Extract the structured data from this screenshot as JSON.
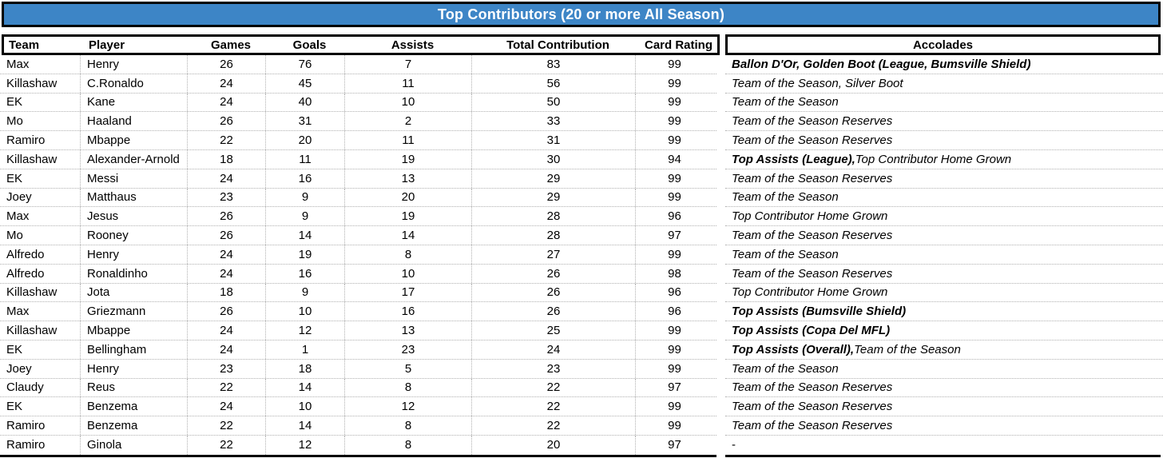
{
  "title": "Top Contributors (20 or more All Season)",
  "colors": {
    "title_bg": "#3d85c6",
    "title_text": "#ffffff",
    "border": "#000000",
    "grid_dotted": "#b0b0b0"
  },
  "table": {
    "columns": [
      "Team",
      "Player",
      "Games",
      "Goals",
      "Assists",
      "Total Contribution",
      "Card Rating"
    ],
    "accolades_header": "Accolades",
    "rows": [
      {
        "team": "Max",
        "player": "Henry",
        "games": "26",
        "goals": "76",
        "assists": "7",
        "total": "83",
        "rating": "99",
        "accolades": [
          {
            "text": "Ballon D'Or, Golden Boot (League, Bumsville Shield)",
            "style": "bold-italic"
          }
        ]
      },
      {
        "team": "Killashaw",
        "player": "C.Ronaldo",
        "games": "24",
        "goals": "45",
        "assists": "11",
        "total": "56",
        "rating": "99",
        "accolades": [
          {
            "text": "Team of the Season, Silver Boot",
            "style": "italic"
          }
        ]
      },
      {
        "team": "EK",
        "player": "Kane",
        "games": "24",
        "goals": "40",
        "assists": "10",
        "total": "50",
        "rating": "99",
        "accolades": [
          {
            "text": "Team of the Season",
            "style": "italic"
          }
        ]
      },
      {
        "team": "Mo",
        "player": "Haaland",
        "games": "26",
        "goals": "31",
        "assists": "2",
        "total": "33",
        "rating": "99",
        "accolades": [
          {
            "text": "Team of the Season Reserves",
            "style": "italic"
          }
        ]
      },
      {
        "team": "Ramiro",
        "player": "Mbappe",
        "games": "22",
        "goals": "20",
        "assists": "11",
        "total": "31",
        "rating": "99",
        "accolades": [
          {
            "text": "Team of the Season Reserves",
            "style": "italic"
          }
        ]
      },
      {
        "team": "Killashaw",
        "player": "Alexander-Arnold",
        "games": "18",
        "goals": "11",
        "assists": "19",
        "total": "30",
        "rating": "94",
        "accolades": [
          {
            "text": "Top Assists (League),",
            "style": "bold-italic"
          },
          {
            "text": " Top Contributor Home Grown",
            "style": "italic"
          }
        ]
      },
      {
        "team": "EK",
        "player": "Messi",
        "games": "24",
        "goals": "16",
        "assists": "13",
        "total": "29",
        "rating": "99",
        "accolades": [
          {
            "text": "Team of the Season Reserves",
            "style": "italic"
          }
        ]
      },
      {
        "team": "Joey",
        "player": "Matthaus",
        "games": "23",
        "goals": "9",
        "assists": "20",
        "total": "29",
        "rating": "99",
        "accolades": [
          {
            "text": "Team of the Season",
            "style": "italic"
          }
        ]
      },
      {
        "team": "Max",
        "player": "Jesus",
        "games": "26",
        "goals": "9",
        "assists": "19",
        "total": "28",
        "rating": "96",
        "accolades": [
          {
            "text": "Top Contributor Home Grown",
            "style": "italic"
          }
        ]
      },
      {
        "team": "Mo",
        "player": "Rooney",
        "games": "26",
        "goals": "14",
        "assists": "14",
        "total": "28",
        "rating": "97",
        "accolades": [
          {
            "text": "Team of the Season Reserves",
            "style": "italic"
          }
        ]
      },
      {
        "team": "Alfredo",
        "player": "Henry",
        "games": "24",
        "goals": "19",
        "assists": "8",
        "total": "27",
        "rating": "99",
        "accolades": [
          {
            "text": "Team of the Season",
            "style": "italic"
          }
        ]
      },
      {
        "team": "Alfredo",
        "player": "Ronaldinho",
        "games": "24",
        "goals": "16",
        "assists": "10",
        "total": "26",
        "rating": "98",
        "accolades": [
          {
            "text": "Team of the Season Reserves",
            "style": "italic"
          }
        ]
      },
      {
        "team": "Killashaw",
        "player": "Jota",
        "games": "18",
        "goals": "9",
        "assists": "17",
        "total": "26",
        "rating": "96",
        "accolades": [
          {
            "text": "Top Contributor Home Grown",
            "style": "italic"
          }
        ]
      },
      {
        "team": "Max",
        "player": "Griezmann",
        "games": "26",
        "goals": "10",
        "assists": "16",
        "total": "26",
        "rating": "96",
        "accolades": [
          {
            "text": "Top Assists (Bumsville Shield)",
            "style": "bold-italic"
          }
        ]
      },
      {
        "team": "Killashaw",
        "player": "Mbappe",
        "games": "24",
        "goals": "12",
        "assists": "13",
        "total": "25",
        "rating": "99",
        "accolades": [
          {
            "text": "Top Assists (Copa Del MFL)",
            "style": "bold-italic"
          }
        ]
      },
      {
        "team": "EK",
        "player": "Bellingham",
        "games": "24",
        "goals": "1",
        "assists": "23",
        "total": "24",
        "rating": "99",
        "accolades": [
          {
            "text": "Top Assists (Overall),",
            "style": "bold-italic"
          },
          {
            "text": " Team of the Season",
            "style": "italic"
          }
        ]
      },
      {
        "team": "Joey",
        "player": "Henry",
        "games": "23",
        "goals": "18",
        "assists": "5",
        "total": "23",
        "rating": "99",
        "accolades": [
          {
            "text": "Team of the Season",
            "style": "italic"
          }
        ]
      },
      {
        "team": "Claudy",
        "player": "Reus",
        "games": "22",
        "goals": "14",
        "assists": "8",
        "total": "22",
        "rating": "97",
        "accolades": [
          {
            "text": "Team of the Season Reserves",
            "style": "italic"
          }
        ]
      },
      {
        "team": "EK",
        "player": "Benzema",
        "games": "24",
        "goals": "10",
        "assists": "12",
        "total": "22",
        "rating": "99",
        "accolades": [
          {
            "text": "Team of the Season Reserves",
            "style": "italic"
          }
        ]
      },
      {
        "team": "Ramiro",
        "player": "Benzema",
        "games": "22",
        "goals": "14",
        "assists": "8",
        "total": "22",
        "rating": "99",
        "accolades": [
          {
            "text": "Team of the Season Reserves",
            "style": "italic"
          }
        ]
      },
      {
        "team": "Ramiro",
        "player": "Ginola",
        "games": "22",
        "goals": "12",
        "assists": "8",
        "total": "20",
        "rating": "97",
        "accolades": [
          {
            "text": "-",
            "style": "plain"
          }
        ]
      }
    ]
  }
}
